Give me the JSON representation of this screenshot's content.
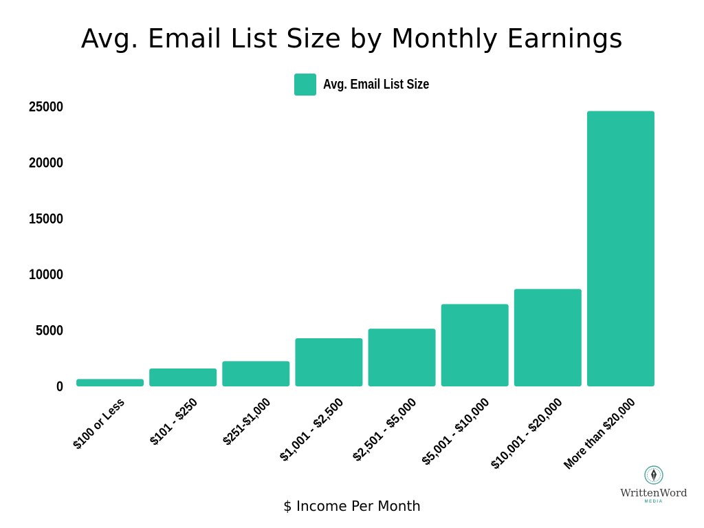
{
  "chart_data": {
    "type": "bar",
    "title": "Avg. Email List Size by Monthly Earnings",
    "xlabel": "$ Income Per Month",
    "ylabel": "",
    "categories": [
      "$100 or Less",
      "$101 - $250",
      "$251-$1,000",
      "$1,001 - $2,500",
      "$2,501 - $5,000",
      "$5,001 - $10,000",
      "$10,001 - $20,000",
      "More than $20,000"
    ],
    "series": [
      {
        "name": "Avg. Email List Size",
        "color": "#26bfa0",
        "values": [
          650,
          1600,
          2250,
          4300,
          5150,
          7350,
          8700,
          24600
        ]
      }
    ],
    "ylim": [
      0,
      25000
    ],
    "yticks": [
      0,
      5000,
      10000,
      15000,
      20000,
      25000
    ],
    "grid": false,
    "legend": "top-center"
  },
  "brand": {
    "name": "WrittenWord",
    "sub": "MEDIA",
    "icon": "pen-nib-emblem-icon"
  }
}
